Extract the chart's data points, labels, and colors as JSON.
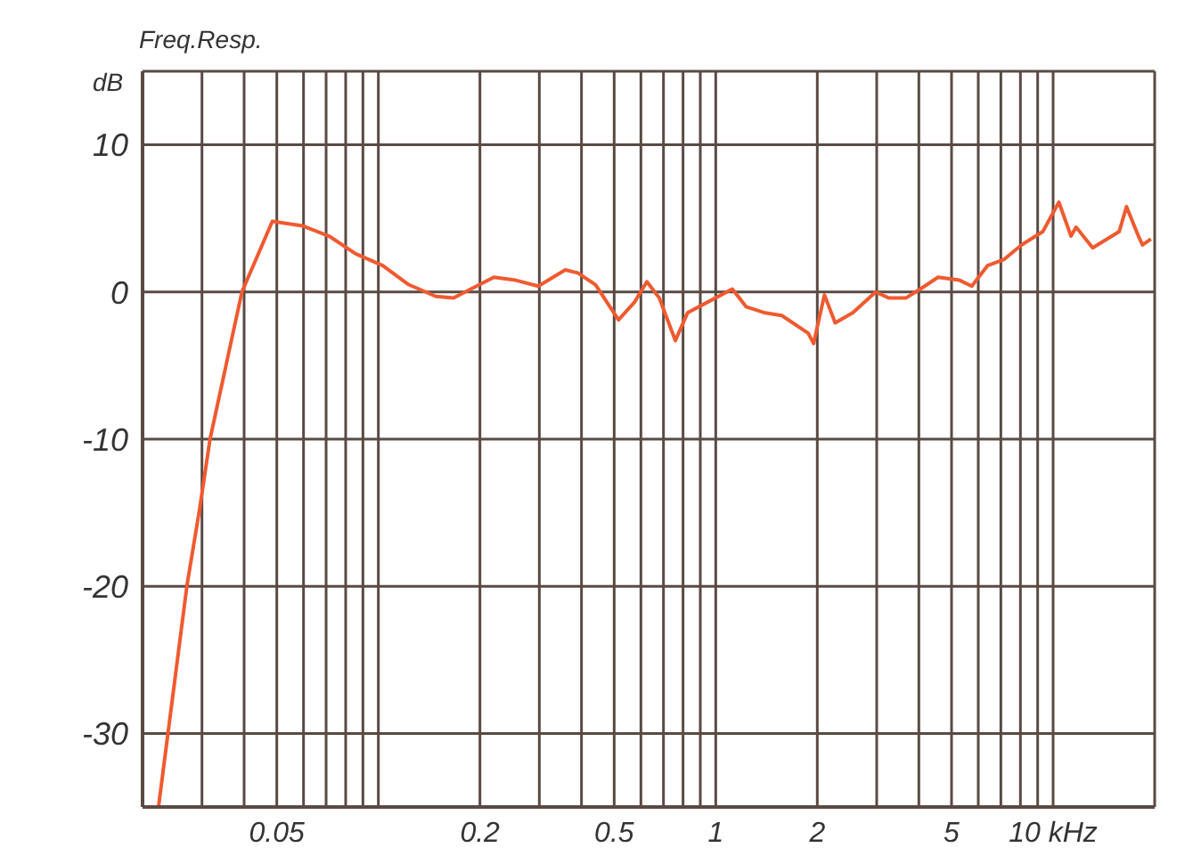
{
  "chart_data": {
    "type": "line",
    "title": "Freq.Resp.",
    "ylabel": "dB",
    "x": [
      0.0223,
      0.0271,
      0.0295,
      0.0317,
      0.0394,
      0.0485,
      0.0595,
      0.0714,
      0.0856,
      0.103,
      0.123,
      0.148,
      0.167,
      0.188,
      0.22,
      0.255,
      0.298,
      0.358,
      0.39,
      0.44,
      0.515,
      0.574,
      0.625,
      0.68,
      0.759,
      0.826,
      0.944,
      1.12,
      1.23,
      1.39,
      1.57,
      1.88,
      1.95,
      2.1,
      2.26,
      2.55,
      2.98,
      3.25,
      3.67,
      4.04,
      4.56,
      5.28,
      5.74,
      6.4,
      7.14,
      8.06,
      9.32,
      10.4,
      11.3,
      11.7,
      13.1,
      15.7,
      16.5,
      17.9,
      18.4,
      19.5
    ],
    "series": [
      {
        "color": "#f05a30",
        "values": [
          -35,
          -19.9,
          -14.8,
          -10,
          0,
          4.8,
          4.5,
          3.8,
          2.6,
          1.8,
          0.5,
          -0.3,
          -0.4,
          0.2,
          1.0,
          0.8,
          0.4,
          1.5,
          1.3,
          0.5,
          -1.9,
          -0.7,
          0.7,
          -0.4,
          -3.3,
          -1.4,
          -0.7,
          0.2,
          -1.0,
          -1.4,
          -1.6,
          -2.8,
          -3.5,
          -0.2,
          -2.1,
          -1.4,
          0,
          -0.4,
          -0.4,
          0.2,
          1.0,
          0.8,
          0.4,
          1.8,
          2.2,
          3.2,
          4.1,
          6.1,
          3.8,
          4.4,
          3.0,
          4.1,
          5.8,
          3.8,
          3.2,
          3.6
        ]
      }
    ],
    "log": "x",
    "xlim": [
      0.02,
      20
    ],
    "xticks": [
      {
        "value": 0.03,
        "label": null
      },
      {
        "value": 0.04,
        "label": null
      },
      0.05,
      {
        "value": 0.06,
        "label": null
      },
      {
        "value": 0.07,
        "label": null
      },
      {
        "value": 0.08,
        "label": null
      },
      {
        "value": 0.09,
        "label": null
      },
      {
        "value": 0.1,
        "label": null
      },
      0.2,
      {
        "value": 0.3,
        "label": null
      },
      {
        "value": 0.4,
        "label": null
      },
      0.5,
      {
        "value": 0.6,
        "label": null
      },
      {
        "value": 0.7,
        "label": null
      },
      {
        "value": 0.8,
        "label": null
      },
      {
        "value": 0.9,
        "label": null
      },
      1,
      2,
      {
        "value": 3,
        "label": null
      },
      {
        "value": 4,
        "label": null
      },
      5,
      {
        "value": 6,
        "label": null
      },
      {
        "value": 7,
        "label": null
      },
      {
        "value": 8,
        "label": null
      },
      {
        "value": 9,
        "label": null
      },
      {
        "value": 10,
        "label": "10 kHz"
      }
    ],
    "ylim": [
      -35,
      15
    ],
    "yticks": [
      -30,
      -20,
      -10,
      0,
      10,
      {
        "value": 15,
        "label": null
      }
    ],
    "grid": true,
    "marker": "none",
    "line_style": "solid"
  }
}
